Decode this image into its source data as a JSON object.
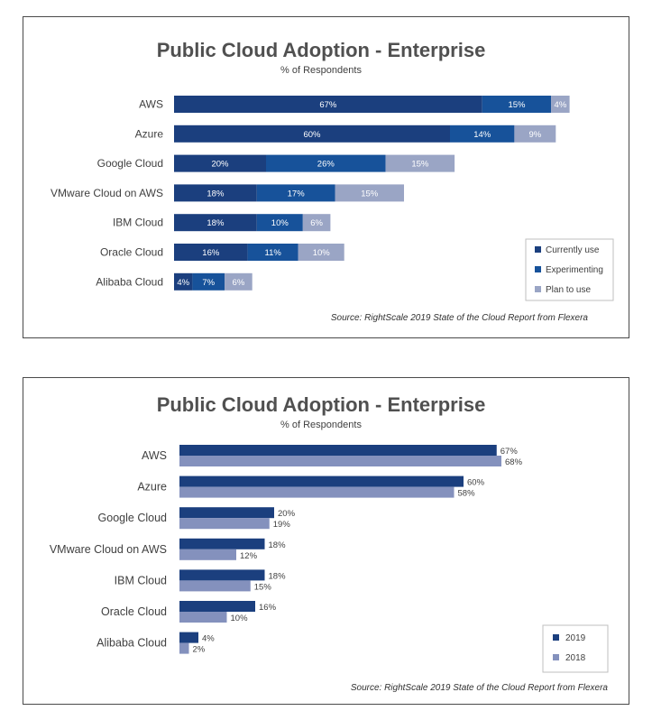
{
  "chart_data": [
    {
      "type": "bar",
      "orientation": "horizontal",
      "stacked": true,
      "title": "Public Cloud Adoption - Enterprise",
      "subtitle": "% of Respondents",
      "source": "Source: RightScale 2019 State of the Cloud Report from Flexera",
      "categories": [
        "AWS",
        "Azure",
        "Google Cloud",
        "VMware Cloud on AWS",
        "IBM Cloud",
        "Oracle Cloud",
        "Alibaba Cloud"
      ],
      "series": [
        {
          "name": "Currently use",
          "color": "#1b3f7e",
          "values": [
            67,
            60,
            20,
            18,
            18,
            16,
            4
          ]
        },
        {
          "name": "Experimenting",
          "color": "#17529a",
          "values": [
            15,
            14,
            26,
            17,
            10,
            11,
            7
          ]
        },
        {
          "name": "Plan to use",
          "color": "#9aa5c5",
          "values": [
            4,
            9,
            15,
            15,
            6,
            10,
            6
          ]
        }
      ],
      "value_suffix": "%",
      "legend_position": "bottom-right",
      "grid": false
    },
    {
      "type": "bar",
      "orientation": "horizontal",
      "stacked": false,
      "title": "Public Cloud Adoption - Enterprise",
      "subtitle": "% of Respondents",
      "source": "Source: RightScale 2019 State of the Cloud Report from Flexera",
      "categories": [
        "AWS",
        "Azure",
        "Google Cloud",
        "VMware Cloud on AWS",
        "IBM Cloud",
        "Oracle Cloud",
        "Alibaba Cloud"
      ],
      "series": [
        {
          "name": "2019",
          "color": "#1b3f7e",
          "values": [
            67,
            60,
            20,
            18,
            18,
            16,
            4
          ]
        },
        {
          "name": "2018",
          "color": "#8491bd",
          "values": [
            68,
            58,
            19,
            12,
            15,
            10,
            2
          ]
        }
      ],
      "value_suffix": "%",
      "legend_position": "bottom-right",
      "grid": false
    }
  ]
}
